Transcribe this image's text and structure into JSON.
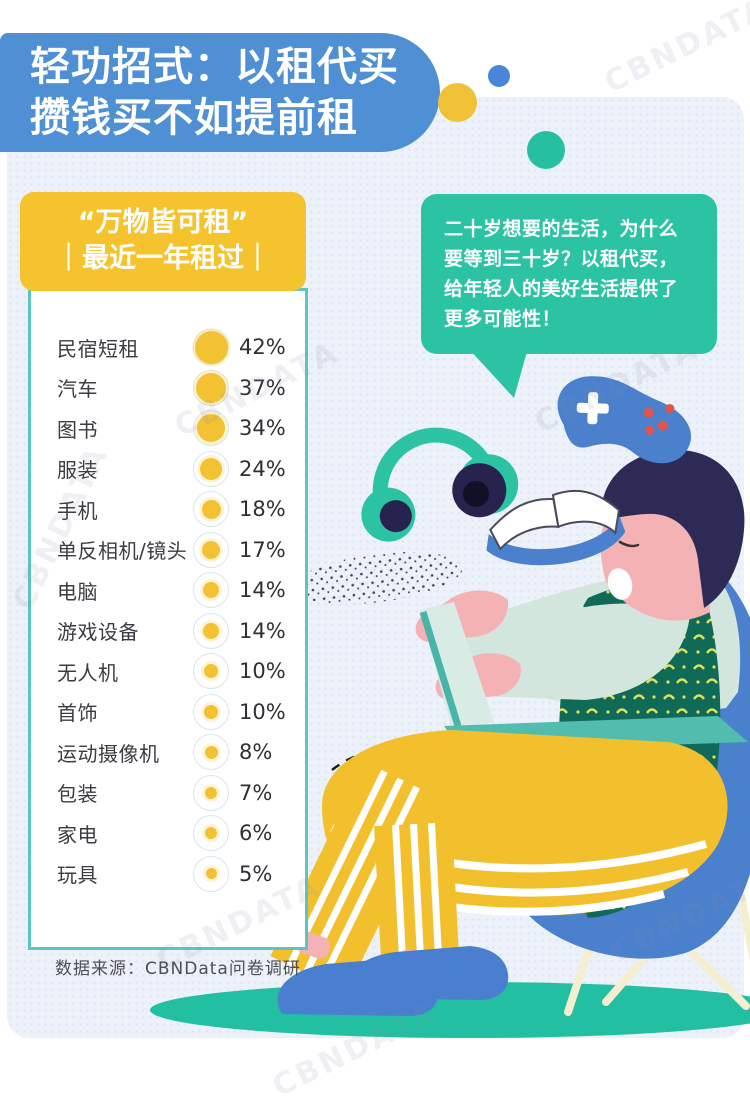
{
  "page": {
    "watermark": "CBNDATA"
  },
  "header": {
    "line1": "轻功招式：以租代买",
    "line2": "攒钱买不如提前租"
  },
  "badge": {
    "line1": "“万物皆可租”",
    "line2": "｜最近一年租过｜"
  },
  "speech_bubble": {
    "lines": [
      "二十岁想要的生活，为什么",
      "要等到三十岁？以租代买，",
      "给年轻人的美好生活提供了",
      "更多可能性！"
    ]
  },
  "source": {
    "text": "数据来源：CBNData问卷调研"
  },
  "chart_data": {
    "type": "bar",
    "style": "proportional-dots",
    "title": "“万物皆可租”最近一年租过",
    "categories": [
      "民宿短租",
      "汽车",
      "图书",
      "服装",
      "手机",
      "单反相机/镜头",
      "电脑",
      "游戏设备",
      "无人机",
      "首饰",
      "运动摄像机",
      "包装",
      "家电",
      "玩具"
    ],
    "values": [
      42,
      37,
      34,
      24,
      18,
      17,
      14,
      14,
      10,
      10,
      8,
      7,
      6,
      5
    ],
    "unit": "%",
    "value_range": [
      0,
      50
    ],
    "legend_position": "none",
    "grid": false
  },
  "colors": {
    "header_blue": "#4f90d5",
    "badge_yellow": "#f5c32e",
    "dot_yellow": "#f2c232",
    "bubble_teal": "#2cc3a4",
    "panel_bg": "#edf1f9",
    "listbox_border": "#5bc6bf",
    "floor_teal": "#23bfa2",
    "chair_blue": "#4a80cc"
  },
  "illustration": {
    "icons": [
      "headphones-icon",
      "game-controller-icon",
      "open-book-icon",
      "laptop-icon",
      "person-on-chair-illustration"
    ]
  }
}
